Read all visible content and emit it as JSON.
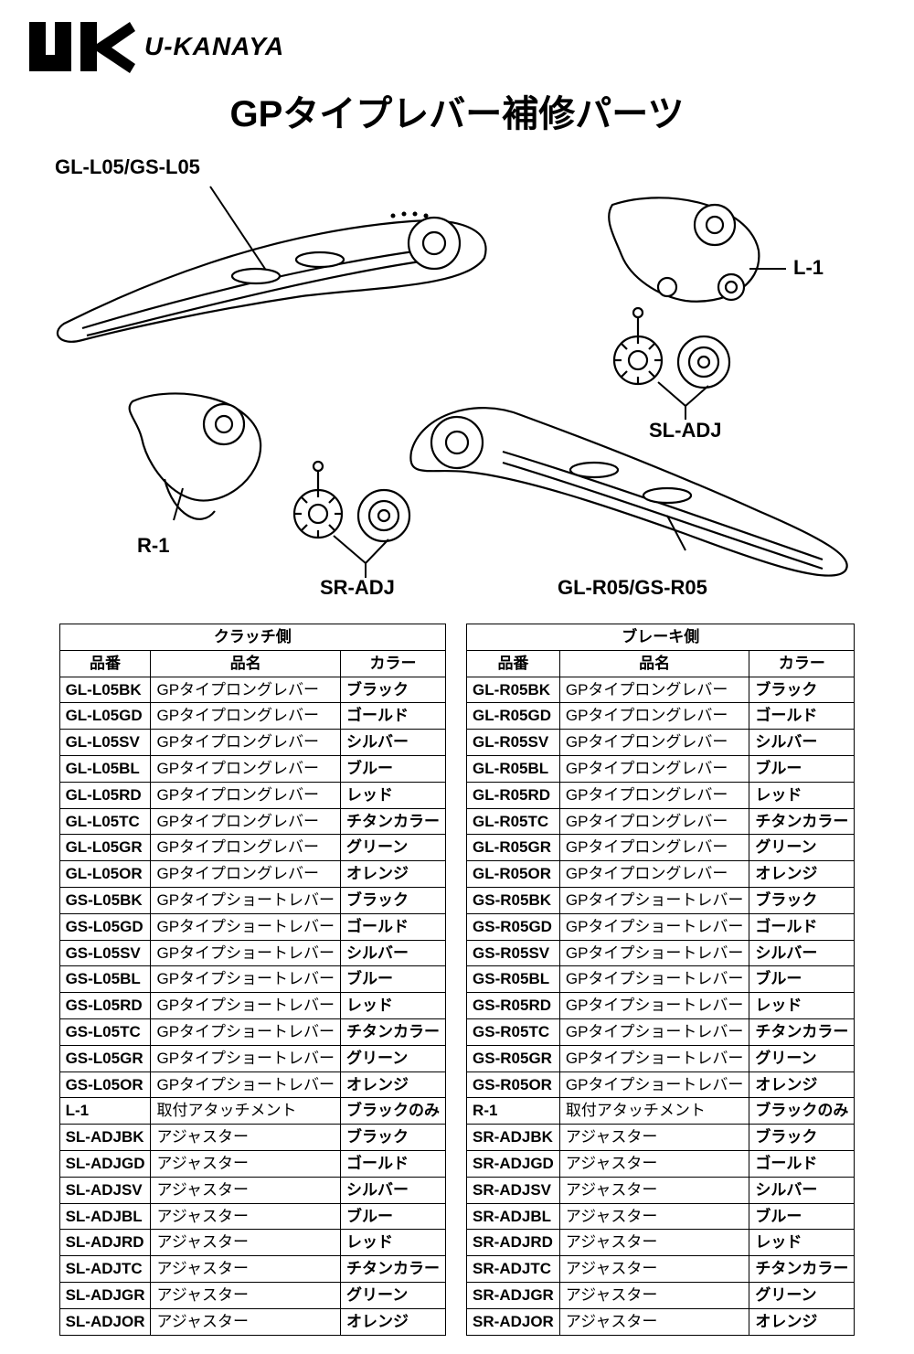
{
  "brand_text": "U-KANAYA",
  "page_title": "GPタイプレバー補修パーツ",
  "diagram_labels": {
    "lever_left": "GL-L05/GS-L05",
    "attach_left": "L-1",
    "adj_left": "SL-ADJ",
    "attach_right": "R-1",
    "adj_right": "SR-ADJ",
    "lever_right": "GL-R05/GS-R05"
  },
  "left_table": {
    "group_header": "クラッチ側",
    "headers": {
      "code": "品番",
      "name": "品名",
      "color": "カラー"
    },
    "col_widths": {
      "code": "110px",
      "name": "180px",
      "color": "110px"
    },
    "rows": [
      {
        "code": "GL-L05BK",
        "name": "GPタイプロングレバー",
        "color": "ブラック"
      },
      {
        "code": "GL-L05GD",
        "name": "GPタイプロングレバー",
        "color": "ゴールド"
      },
      {
        "code": "GL-L05SV",
        "name": "GPタイプロングレバー",
        "color": "シルバー"
      },
      {
        "code": "GL-L05BL",
        "name": "GPタイプロングレバー",
        "color": "ブルー"
      },
      {
        "code": "GL-L05RD",
        "name": "GPタイプロングレバー",
        "color": "レッド"
      },
      {
        "code": "GL-L05TC",
        "name": "GPタイプロングレバー",
        "color": "チタンカラー"
      },
      {
        "code": "GL-L05GR",
        "name": "GPタイプロングレバー",
        "color": "グリーン"
      },
      {
        "code": "GL-L05OR",
        "name": "GPタイプロングレバー",
        "color": "オレンジ"
      },
      {
        "code": "GS-L05BK",
        "name": "GPタイプショートレバー",
        "color": "ブラック"
      },
      {
        "code": "GS-L05GD",
        "name": "GPタイプショートレバー",
        "color": "ゴールド"
      },
      {
        "code": "GS-L05SV",
        "name": "GPタイプショートレバー",
        "color": "シルバー"
      },
      {
        "code": "GS-L05BL",
        "name": "GPタイプショートレバー",
        "color": "ブルー"
      },
      {
        "code": "GS-L05RD",
        "name": "GPタイプショートレバー",
        "color": "レッド"
      },
      {
        "code": "GS-L05TC",
        "name": "GPタイプショートレバー",
        "color": "チタンカラー"
      },
      {
        "code": "GS-L05GR",
        "name": "GPタイプショートレバー",
        "color": "グリーン"
      },
      {
        "code": "GS-L05OR",
        "name": "GPタイプショートレバー",
        "color": "オレンジ"
      },
      {
        "code": "L-1",
        "name": "取付アタッチメント",
        "color": "ブラックのみ"
      },
      {
        "code": "SL-ADJBK",
        "name": "アジャスター",
        "color": "ブラック"
      },
      {
        "code": "SL-ADJGD",
        "name": "アジャスター",
        "color": "ゴールド"
      },
      {
        "code": "SL-ADJSV",
        "name": "アジャスター",
        "color": "シルバー"
      },
      {
        "code": "SL-ADJBL",
        "name": "アジャスター",
        "color": "ブルー"
      },
      {
        "code": "SL-ADJRD",
        "name": "アジャスター",
        "color": "レッド"
      },
      {
        "code": "SL-ADJTC",
        "name": "アジャスター",
        "color": "チタンカラー"
      },
      {
        "code": "SL-ADJGR",
        "name": "アジャスター",
        "color": "グリーン"
      },
      {
        "code": "SL-ADJOR",
        "name": "アジャスター",
        "color": "オレンジ"
      }
    ]
  },
  "right_table": {
    "group_header": "ブレーキ側",
    "headers": {
      "code": "品番",
      "name": "品名",
      "color": "カラー"
    },
    "col_widths": {
      "code": "110px",
      "name": "180px",
      "color": "110px"
    },
    "rows": [
      {
        "code": "GL-R05BK",
        "name": "GPタイプロングレバー",
        "color": "ブラック"
      },
      {
        "code": "GL-R05GD",
        "name": "GPタイプロングレバー",
        "color": "ゴールド"
      },
      {
        "code": "GL-R05SV",
        "name": "GPタイプロングレバー",
        "color": "シルバー"
      },
      {
        "code": "GL-R05BL",
        "name": "GPタイプロングレバー",
        "color": "ブルー"
      },
      {
        "code": "GL-R05RD",
        "name": "GPタイプロングレバー",
        "color": "レッド"
      },
      {
        "code": "GL-R05TC",
        "name": "GPタイプロングレバー",
        "color": "チタンカラー"
      },
      {
        "code": "GL-R05GR",
        "name": "GPタイプロングレバー",
        "color": "グリーン"
      },
      {
        "code": "GL-R05OR",
        "name": "GPタイプロングレバー",
        "color": "オレンジ"
      },
      {
        "code": "GS-R05BK",
        "name": "GPタイプショートレバー",
        "color": "ブラック"
      },
      {
        "code": "GS-R05GD",
        "name": "GPタイプショートレバー",
        "color": "ゴールド"
      },
      {
        "code": "GS-R05SV",
        "name": "GPタイプショートレバー",
        "color": "シルバー"
      },
      {
        "code": "GS-R05BL",
        "name": "GPタイプショートレバー",
        "color": "ブルー"
      },
      {
        "code": "GS-R05RD",
        "name": "GPタイプショートレバー",
        "color": "レッド"
      },
      {
        "code": "GS-R05TC",
        "name": "GPタイプショートレバー",
        "color": "チタンカラー"
      },
      {
        "code": "GS-R05GR",
        "name": "GPタイプショートレバー",
        "color": "グリーン"
      },
      {
        "code": "GS-R05OR",
        "name": "GPタイプショートレバー",
        "color": "オレンジ"
      },
      {
        "code": "R-1",
        "name": "取付アタッチメント",
        "color": "ブラックのみ"
      },
      {
        "code": "SR-ADJBK",
        "name": "アジャスター",
        "color": "ブラック"
      },
      {
        "code": "SR-ADJGD",
        "name": "アジャスター",
        "color": "ゴールド"
      },
      {
        "code": "SR-ADJSV",
        "name": "アジャスター",
        "color": "シルバー"
      },
      {
        "code": "SR-ADJBL",
        "name": "アジャスター",
        "color": "ブルー"
      },
      {
        "code": "SR-ADJRD",
        "name": "アジャスター",
        "color": "レッド"
      },
      {
        "code": "SR-ADJTC",
        "name": "アジャスター",
        "color": "チタンカラー"
      },
      {
        "code": "SR-ADJGR",
        "name": "アジャスター",
        "color": "グリーン"
      },
      {
        "code": "SR-ADJOR",
        "name": "アジャスター",
        "color": "オレンジ"
      }
    ]
  },
  "styling": {
    "background_color": "#ffffff",
    "text_color": "#000000",
    "border_color": "#000000",
    "table_font_size": 17,
    "title_font_size": 40,
    "label_font_size": 22
  }
}
